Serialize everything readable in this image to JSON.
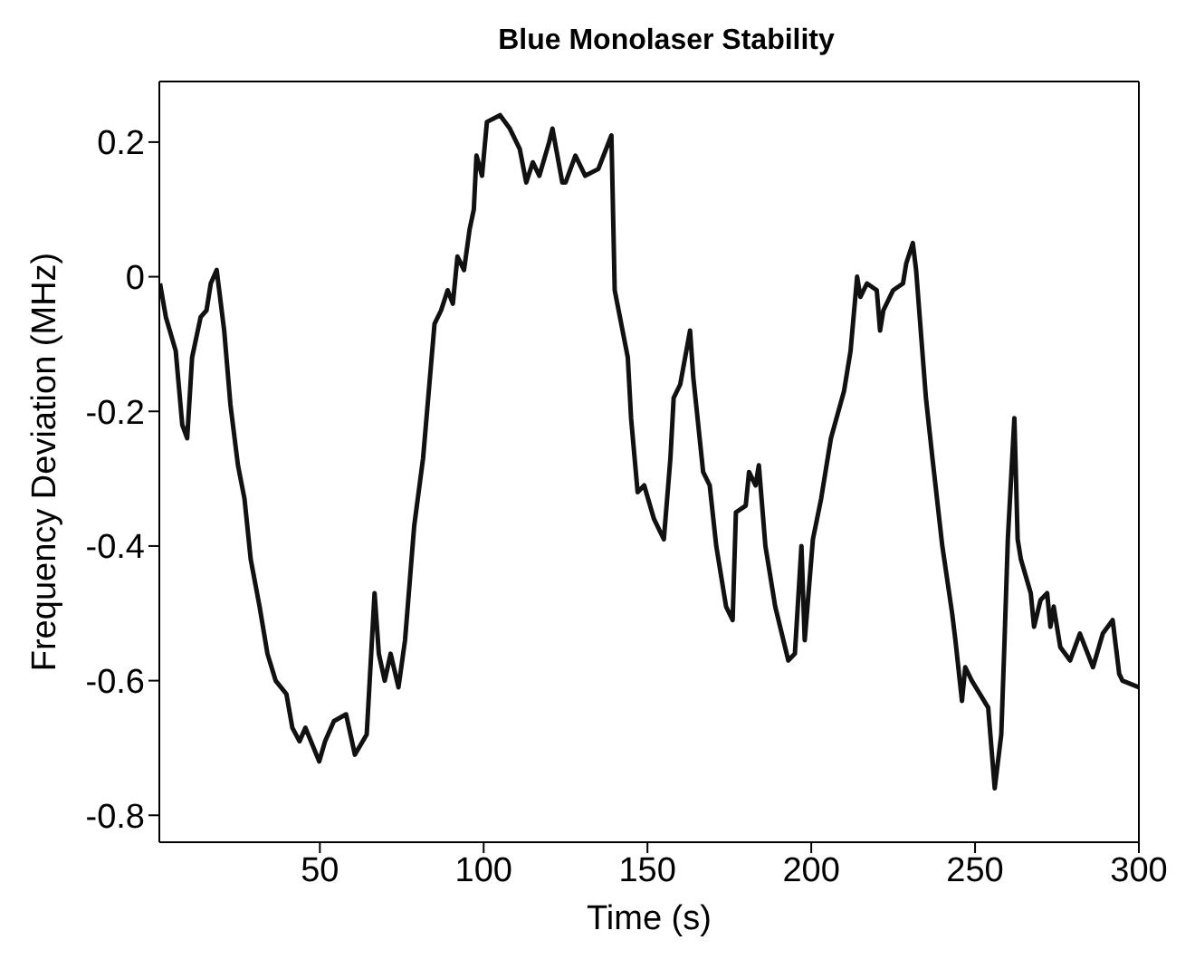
{
  "chart_data": {
    "type": "line",
    "title": "Blue Monolaser Stability",
    "xlabel": "Time (s)",
    "ylabel": "Frequency Deviation (MHz)",
    "xlim": [
      1,
      300
    ],
    "xticks": [
      50,
      100,
      150,
      200,
      250,
      300
    ],
    "ylim": [
      -0.84,
      0.29
    ],
    "yticks": [
      -0.8,
      -0.6,
      -0.4,
      -0.2,
      0,
      0.2
    ],
    "marker": "none",
    "line_style": "solid",
    "x": [
      1.2,
      3,
      6,
      8,
      9.5,
      11,
      13.6,
      15.4,
      16.7,
      18.5,
      20.8,
      22.7,
      25,
      27,
      28.9,
      31.6,
      34,
      36.5,
      39.8,
      41.6,
      43.8,
      45.6,
      49.8,
      51.6,
      54.3,
      58,
      60.7,
      64.3,
      66.7,
      68,
      69.8,
      71.6,
      74,
      76,
      78.8,
      81.5,
      85,
      87,
      89,
      90.6,
      92,
      94,
      95.7,
      97,
      97.8,
      99.5,
      101,
      105,
      108,
      111,
      113,
      115,
      117,
      120,
      121,
      124,
      125,
      128,
      131,
      135,
      139,
      140,
      144,
      145,
      147,
      149,
      152,
      155,
      157,
      158,
      160,
      163,
      164,
      167,
      169,
      171,
      174,
      176,
      177,
      180,
      181,
      183,
      184,
      186,
      189,
      193,
      195,
      197,
      198,
      200.5,
      203,
      206,
      210,
      212,
      214,
      215,
      217,
      220,
      221,
      222,
      225,
      228,
      229,
      231,
      232,
      235,
      237,
      240,
      243,
      244,
      246,
      247,
      249,
      254,
      256,
      258,
      259,
      260,
      262,
      263,
      264,
      267,
      268,
      270,
      272,
      273,
      274,
      276,
      279,
      282,
      286,
      289,
      292,
      294,
      295,
      300
    ],
    "series": [
      {
        "color": "#111111",
        "values": [
          -0.01,
          -0.06,
          -0.11,
          -0.22,
          -0.24,
          -0.12,
          -0.06,
          -0.05,
          -0.01,
          0.01,
          -0.08,
          -0.19,
          -0.28,
          -0.33,
          -0.42,
          -0.49,
          -0.56,
          -0.6,
          -0.62,
          -0.67,
          -0.69,
          -0.67,
          -0.72,
          -0.69,
          -0.66,
          -0.65,
          -0.71,
          -0.68,
          -0.47,
          -0.56,
          -0.6,
          -0.56,
          -0.61,
          -0.54,
          -0.37,
          -0.27,
          -0.07,
          -0.05,
          -0.02,
          -0.04,
          0.03,
          0.01,
          0.07,
          0.1,
          0.18,
          0.15,
          0.23,
          0.24,
          0.22,
          0.19,
          0.14,
          0.17,
          0.15,
          0.2,
          0.22,
          0.14,
          0.14,
          0.18,
          0.15,
          0.16,
          0.21,
          -0.02,
          -0.12,
          -0.21,
          -0.32,
          -0.31,
          -0.36,
          -0.39,
          -0.27,
          -0.18,
          -0.16,
          -0.08,
          -0.15,
          -0.29,
          -0.31,
          -0.4,
          -0.49,
          -0.51,
          -0.35,
          -0.34,
          -0.29,
          -0.31,
          -0.28,
          -0.4,
          -0.49,
          -0.57,
          -0.56,
          -0.4,
          -0.54,
          -0.39,
          -0.33,
          -0.24,
          -0.17,
          -0.11,
          0,
          -0.03,
          -0.01,
          -0.02,
          -0.08,
          -0.05,
          -0.02,
          -0.01,
          0.02,
          0.05,
          0.01,
          -0.18,
          -0.27,
          -0.4,
          -0.5,
          -0.54,
          -0.63,
          -0.58,
          -0.6,
          -0.64,
          -0.76,
          -0.68,
          -0.54,
          -0.39,
          -0.21,
          -0.39,
          -0.42,
          -0.47,
          -0.52,
          -0.48,
          -0.47,
          -0.52,
          -0.49,
          -0.55,
          -0.57,
          -0.53,
          -0.58,
          -0.53,
          -0.51,
          -0.59,
          -0.6,
          -0.61
        ]
      }
    ]
  }
}
